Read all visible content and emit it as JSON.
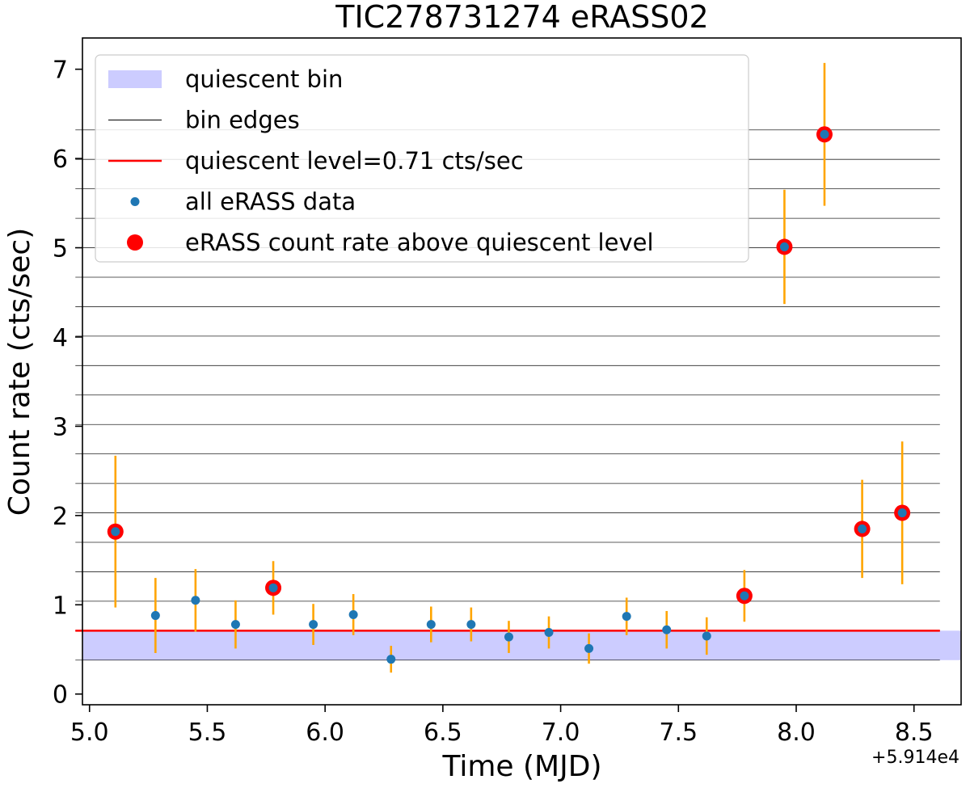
{
  "chart_data": {
    "type": "scatter",
    "title": "TIC278731274 eRASS02",
    "xlabel": "Time (MJD)",
    "ylabel": "Count rate (cts/sec)",
    "x_offset_label": "+5.914e4",
    "xlim": [
      4.97,
      8.7
    ],
    "ylim": [
      -0.12,
      7.35
    ],
    "xticks": [
      5.0,
      5.5,
      6.0,
      6.5,
      7.0,
      7.5,
      8.0,
      8.5
    ],
    "xtick_labels": [
      "5.0",
      "5.5",
      "6.0",
      "6.5",
      "7.0",
      "7.5",
      "8.0",
      "8.5"
    ],
    "yticks": [
      0,
      1,
      2,
      3,
      4,
      5,
      6,
      7
    ],
    "ytick_labels": [
      "0",
      "1",
      "2",
      "3",
      "4",
      "5",
      "6",
      "7"
    ],
    "legend_position": "top-left",
    "legend": [
      {
        "label": "quiescent bin",
        "kind": "band"
      },
      {
        "label": "bin edges",
        "kind": "thin-line"
      },
      {
        "label": "quiescent level=0.71 cts/sec",
        "kind": "red-line"
      },
      {
        "label": "all eRASS data",
        "kind": "blue-dot"
      },
      {
        "label": "eRASS count rate above quiescent level",
        "kind": "red-dot"
      }
    ],
    "quiescent_level": 0.71,
    "quiescent_bin": [
      0.38,
      0.71
    ],
    "bin_edges_xrange": [
      4.94,
      8.61
    ],
    "bin_edges": [
      0.38,
      0.71,
      1.04,
      1.37,
      1.7,
      2.03,
      2.36,
      2.69,
      3.02,
      3.35,
      3.68,
      4.01,
      4.34,
      4.67,
      5.0,
      5.33,
      5.66,
      5.99,
      6.32
    ],
    "points": [
      {
        "x": 5.11,
        "y": 1.82,
        "err": 0.85,
        "above": true
      },
      {
        "x": 5.28,
        "y": 0.88,
        "err": 0.42,
        "above": false
      },
      {
        "x": 5.45,
        "y": 1.05,
        "err": 0.35,
        "above": false
      },
      {
        "x": 5.62,
        "y": 0.78,
        "err": 0.27,
        "above": false
      },
      {
        "x": 5.78,
        "y": 1.19,
        "err": 0.3,
        "above": true
      },
      {
        "x": 5.95,
        "y": 0.78,
        "err": 0.23,
        "above": false
      },
      {
        "x": 6.12,
        "y": 0.89,
        "err": 0.23,
        "above": false
      },
      {
        "x": 6.28,
        "y": 0.39,
        "err": 0.15,
        "above": false
      },
      {
        "x": 6.45,
        "y": 0.78,
        "err": 0.2,
        "above": false
      },
      {
        "x": 6.62,
        "y": 0.78,
        "err": 0.19,
        "above": false
      },
      {
        "x": 6.78,
        "y": 0.64,
        "err": 0.18,
        "above": false
      },
      {
        "x": 6.95,
        "y": 0.69,
        "err": 0.18,
        "above": false
      },
      {
        "x": 7.12,
        "y": 0.51,
        "err": 0.17,
        "above": false
      },
      {
        "x": 7.28,
        "y": 0.87,
        "err": 0.21,
        "above": false
      },
      {
        "x": 7.45,
        "y": 0.72,
        "err": 0.21,
        "above": false
      },
      {
        "x": 7.62,
        "y": 0.65,
        "err": 0.21,
        "above": false
      },
      {
        "x": 7.78,
        "y": 1.1,
        "err": 0.29,
        "above": true
      },
      {
        "x": 7.95,
        "y": 5.01,
        "err": 0.64,
        "above": true
      },
      {
        "x": 8.12,
        "y": 6.27,
        "err": 0.8,
        "above": true
      },
      {
        "x": 8.28,
        "y": 1.85,
        "err": 0.55,
        "above": true
      },
      {
        "x": 8.45,
        "y": 2.03,
        "err": 0.8,
        "above": true
      }
    ],
    "colors": {
      "band": "#ccccff",
      "bin_edge": "#000000",
      "quiescent_line": "#ff0000",
      "error_bar": "#ffa500",
      "data_dot": "#1f77b4",
      "above_dot": "#ff0000"
    }
  }
}
